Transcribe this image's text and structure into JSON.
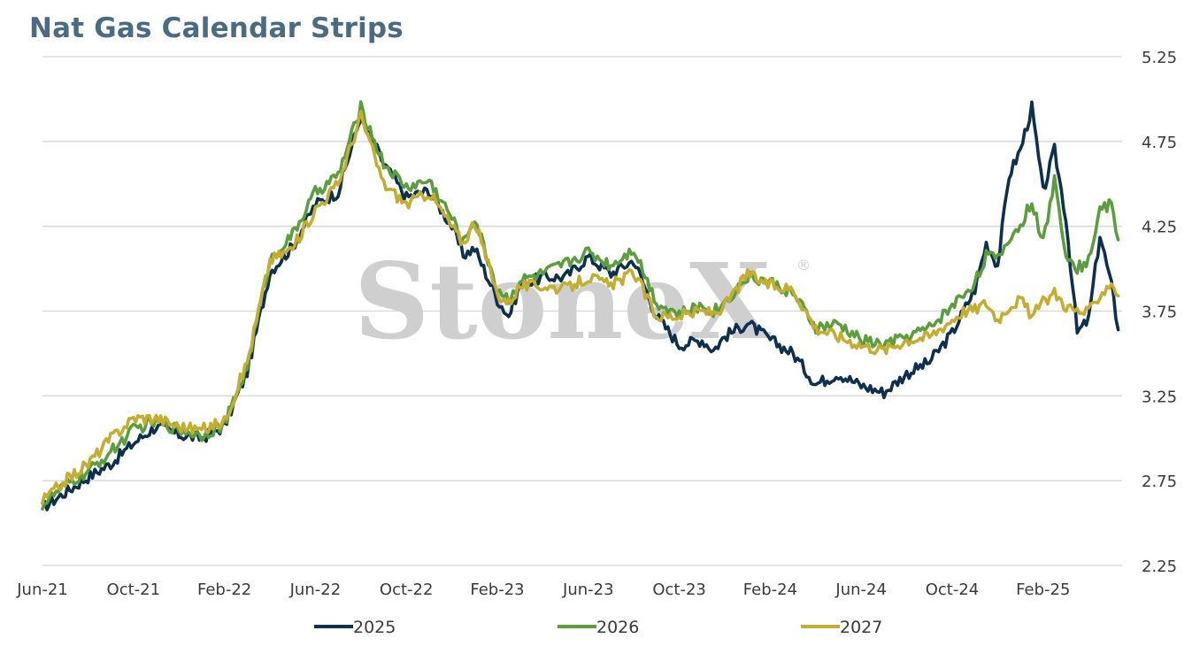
{
  "title": "Nat Gas Calendar Strips",
  "watermark": "StoneX",
  "watermark_mark": "®",
  "chart_data": {
    "type": "line",
    "title": "Nat Gas Calendar Strips",
    "x_ticks": [
      "Jun-21",
      "Oct-21",
      "Feb-22",
      "Jun-22",
      "Oct-22",
      "Feb-23",
      "Jun-23",
      "Oct-23",
      "Feb-24",
      "Jun-24",
      "Oct-24",
      "Feb-25"
    ],
    "y_ticks": [
      "2.25",
      "2.75",
      "3.25",
      "3.75",
      "4.25",
      "4.75",
      "5.25"
    ],
    "ylim": [
      2.25,
      5.25
    ],
    "x_range_months": [
      0,
      47.5
    ],
    "grid": "horizontal",
    "y_axis_side": "right",
    "legend_placement": "bottom",
    "series": [
      {
        "name": "2025",
        "color": "#0d3050",
        "x": [
          0,
          1,
          2,
          3,
          4,
          5,
          6,
          7,
          8,
          9,
          10,
          11,
          12,
          13,
          14,
          15,
          16,
          17,
          18,
          18.5,
          19,
          20,
          20.5,
          21,
          22,
          23,
          24,
          25,
          26,
          27,
          28,
          29,
          29.5,
          30,
          31,
          32,
          33,
          34,
          35,
          36,
          37,
          38,
          39,
          40,
          40.5,
          41,
          41.5,
          42,
          42.5,
          43,
          43.5,
          44,
          44.5,
          45,
          45.5,
          46,
          46.5,
          47,
          47.3
        ],
        "y": [
          2.59,
          2.68,
          2.77,
          2.85,
          2.97,
          3.07,
          3.02,
          3.0,
          3.07,
          3.39,
          3.98,
          4.13,
          4.38,
          4.45,
          4.9,
          4.62,
          4.42,
          4.46,
          4.25,
          4.08,
          4.12,
          3.82,
          3.72,
          3.9,
          3.95,
          3.95,
          4.07,
          3.97,
          4.05,
          3.72,
          3.55,
          3.58,
          3.52,
          3.6,
          3.68,
          3.58,
          3.5,
          3.32,
          3.38,
          3.31,
          3.27,
          3.38,
          3.45,
          3.62,
          3.75,
          3.88,
          4.15,
          4.02,
          4.55,
          4.7,
          4.95,
          4.45,
          4.7,
          4.3,
          3.62,
          3.7,
          4.2,
          3.9,
          3.64
        ]
      },
      {
        "name": "2026",
        "color": "#5c9e3e",
        "x": [
          0,
          1,
          2,
          3,
          4,
          5,
          6,
          7,
          8,
          9,
          10,
          11,
          12,
          13,
          14,
          15,
          16,
          17,
          18,
          18.5,
          19,
          20,
          20.5,
          21,
          22,
          23,
          24,
          25,
          26,
          27,
          28,
          29,
          29.5,
          30,
          31,
          32,
          33,
          34,
          35,
          36,
          37,
          38,
          39,
          40,
          40.5,
          41,
          41.5,
          42,
          42.5,
          43,
          43.5,
          44,
          44.5,
          45,
          45.5,
          46,
          46.5,
          47,
          47.3
        ],
        "y": [
          2.61,
          2.72,
          2.8,
          2.92,
          3.05,
          3.1,
          3.05,
          3.02,
          3.08,
          3.42,
          4.05,
          4.2,
          4.45,
          4.55,
          4.95,
          4.62,
          4.48,
          4.52,
          4.3,
          4.15,
          4.3,
          3.88,
          3.82,
          3.93,
          3.97,
          4.03,
          4.1,
          4.02,
          4.12,
          3.8,
          3.73,
          3.78,
          3.75,
          3.8,
          3.95,
          3.92,
          3.85,
          3.65,
          3.67,
          3.58,
          3.55,
          3.6,
          3.65,
          3.78,
          3.85,
          3.92,
          4.08,
          4.05,
          4.18,
          4.25,
          4.4,
          4.15,
          4.52,
          4.1,
          4.0,
          4.05,
          4.35,
          4.38,
          4.17
        ]
      },
      {
        "name": "2027",
        "color": "#c4ae32",
        "x": [
          0,
          1,
          2,
          3,
          4,
          5,
          6,
          7,
          8,
          9,
          10,
          11,
          12,
          13,
          14,
          15,
          16,
          17,
          18,
          18.5,
          19,
          20,
          20.5,
          21,
          22,
          23,
          24,
          25,
          26,
          27,
          28,
          29,
          29.5,
          30,
          31,
          32,
          33,
          34,
          35,
          36,
          37,
          38,
          39,
          40,
          40.5,
          41,
          41.5,
          42,
          42.5,
          43,
          43.5,
          44,
          44.5,
          45,
          45.5,
          46,
          46.5,
          47,
          47.3
        ],
        "y": [
          2.63,
          2.75,
          2.85,
          3.0,
          3.12,
          3.12,
          3.07,
          3.05,
          3.1,
          3.45,
          4.05,
          4.12,
          4.35,
          4.5,
          4.9,
          4.5,
          4.38,
          4.45,
          4.25,
          4.15,
          4.28,
          3.85,
          3.8,
          3.9,
          3.9,
          3.88,
          3.95,
          3.9,
          3.98,
          3.72,
          3.72,
          3.75,
          3.74,
          3.78,
          3.97,
          3.9,
          3.88,
          3.65,
          3.6,
          3.55,
          3.52,
          3.58,
          3.6,
          3.7,
          3.75,
          3.76,
          3.8,
          3.7,
          3.78,
          3.82,
          3.72,
          3.8,
          3.86,
          3.78,
          3.75,
          3.74,
          3.85,
          3.92,
          3.84
        ]
      }
    ]
  }
}
